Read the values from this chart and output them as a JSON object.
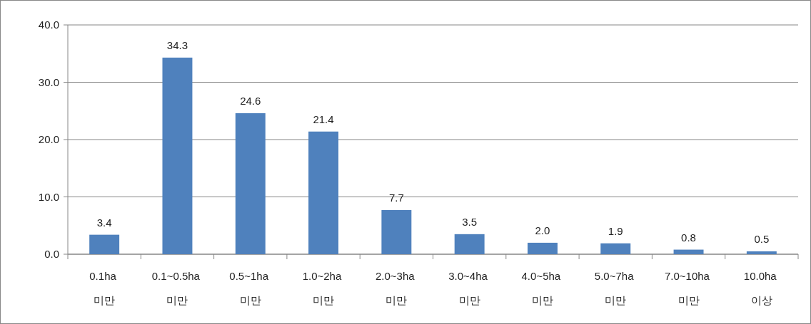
{
  "chart_data": {
    "type": "bar",
    "categories": [
      "0.1ha 미만",
      "0.1~0.5ha 미만",
      "0.5~1ha 미만",
      "1.0~2ha 미만",
      "2.0~3ha 미만",
      "3.0~4ha 미만",
      "4.0~5ha 미만",
      "5.0~7ha 미만",
      "7.0~10ha 미만",
      "10.0ha 이상"
    ],
    "values": [
      3.4,
      34.3,
      24.6,
      21.4,
      7.7,
      3.5,
      2.0,
      1.9,
      0.8,
      0.5
    ],
    "value_labels": [
      "3.4",
      "34.3",
      "24.6",
      "21.4",
      "7.7",
      "3.5",
      "2.0",
      "1.9",
      "0.8",
      "0.5"
    ],
    "color": "#4f81bd",
    "ylim": [
      0,
      40
    ],
    "yticks": [
      {
        "value": 0,
        "label": "0.0"
      },
      {
        "value": 10,
        "label": "10.0"
      },
      {
        "value": 20,
        "label": "20.0"
      },
      {
        "value": 30,
        "label": "30.0"
      },
      {
        "value": 40,
        "label": "40.0"
      }
    ],
    "grid": "y"
  }
}
